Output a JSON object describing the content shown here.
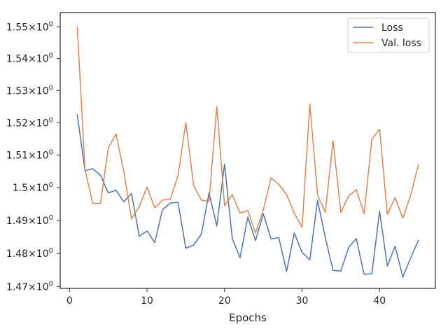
{
  "chart_data": {
    "type": "line",
    "title": "",
    "xlabel": "Epochs",
    "ylabel": "",
    "xlim": [
      -1.2,
      47.2
    ],
    "ylim": [
      1.4695,
      1.5545
    ],
    "y_scale": "log",
    "grid": false,
    "legend_position": "top-right",
    "x_ticks": [
      0,
      10,
      20,
      30,
      40
    ],
    "y_ticks": [
      {
        "value": 1.47,
        "label": "1.47"
      },
      {
        "value": 1.48,
        "label": "1.48"
      },
      {
        "value": 1.49,
        "label": "1.49"
      },
      {
        "value": 1.5,
        "label": "1.5"
      },
      {
        "value": 1.51,
        "label": "1.51"
      },
      {
        "value": 1.52,
        "label": "1.52"
      },
      {
        "value": 1.53,
        "label": "1.53"
      },
      {
        "value": 1.54,
        "label": "1.54"
      },
      {
        "value": 1.55,
        "label": "1.55"
      }
    ],
    "y_tick_suffix": "×10",
    "y_tick_exponent": "0",
    "x": [
      1,
      2,
      3,
      4,
      5,
      6,
      7,
      8,
      9,
      10,
      11,
      12,
      13,
      14,
      15,
      16,
      17,
      18,
      19,
      20,
      21,
      22,
      23,
      24,
      25,
      26,
      27,
      28,
      29,
      30,
      31,
      32,
      33,
      34,
      35,
      36,
      37,
      38,
      39,
      40,
      41,
      42,
      43,
      44,
      45
    ],
    "series": [
      {
        "name": "Loss",
        "color": "#4c72b0",
        "values": [
          1.5225,
          1.5052,
          1.5058,
          1.5038,
          1.4984,
          1.4992,
          1.4957,
          1.4982,
          1.4852,
          1.4868,
          1.4833,
          1.4933,
          1.4953,
          1.4955,
          1.4816,
          1.4825,
          1.4858,
          1.4984,
          1.4883,
          1.5072,
          1.4845,
          1.4787,
          1.491,
          1.4839,
          1.492,
          1.4844,
          1.4848,
          1.4746,
          1.4862,
          1.4803,
          1.4781,
          1.4961,
          1.4848,
          1.4749,
          1.4747,
          1.4818,
          1.4845,
          1.4737,
          1.4739,
          1.4928,
          1.4762,
          1.4822,
          1.4729,
          1.4786,
          1.4839
        ]
      },
      {
        "name": "Val. loss",
        "color": "#dd8452",
        "values": [
          1.55,
          1.5055,
          1.4952,
          1.4952,
          1.5122,
          1.5165,
          1.505,
          1.4905,
          1.4942,
          1.5002,
          1.4938,
          1.4962,
          1.4965,
          1.5037,
          1.52,
          1.5008,
          1.4962,
          1.4958,
          1.525,
          1.4945,
          1.4979,
          1.4922,
          1.493,
          1.4862,
          1.4932,
          1.503,
          1.501,
          1.4979,
          1.4922,
          1.4879,
          1.5258,
          1.4977,
          1.4925,
          1.5145,
          1.4924,
          1.4974,
          1.4994,
          1.492,
          1.5149,
          1.518,
          1.4919,
          1.4969,
          1.4907,
          1.4976,
          1.507
        ]
      }
    ]
  }
}
